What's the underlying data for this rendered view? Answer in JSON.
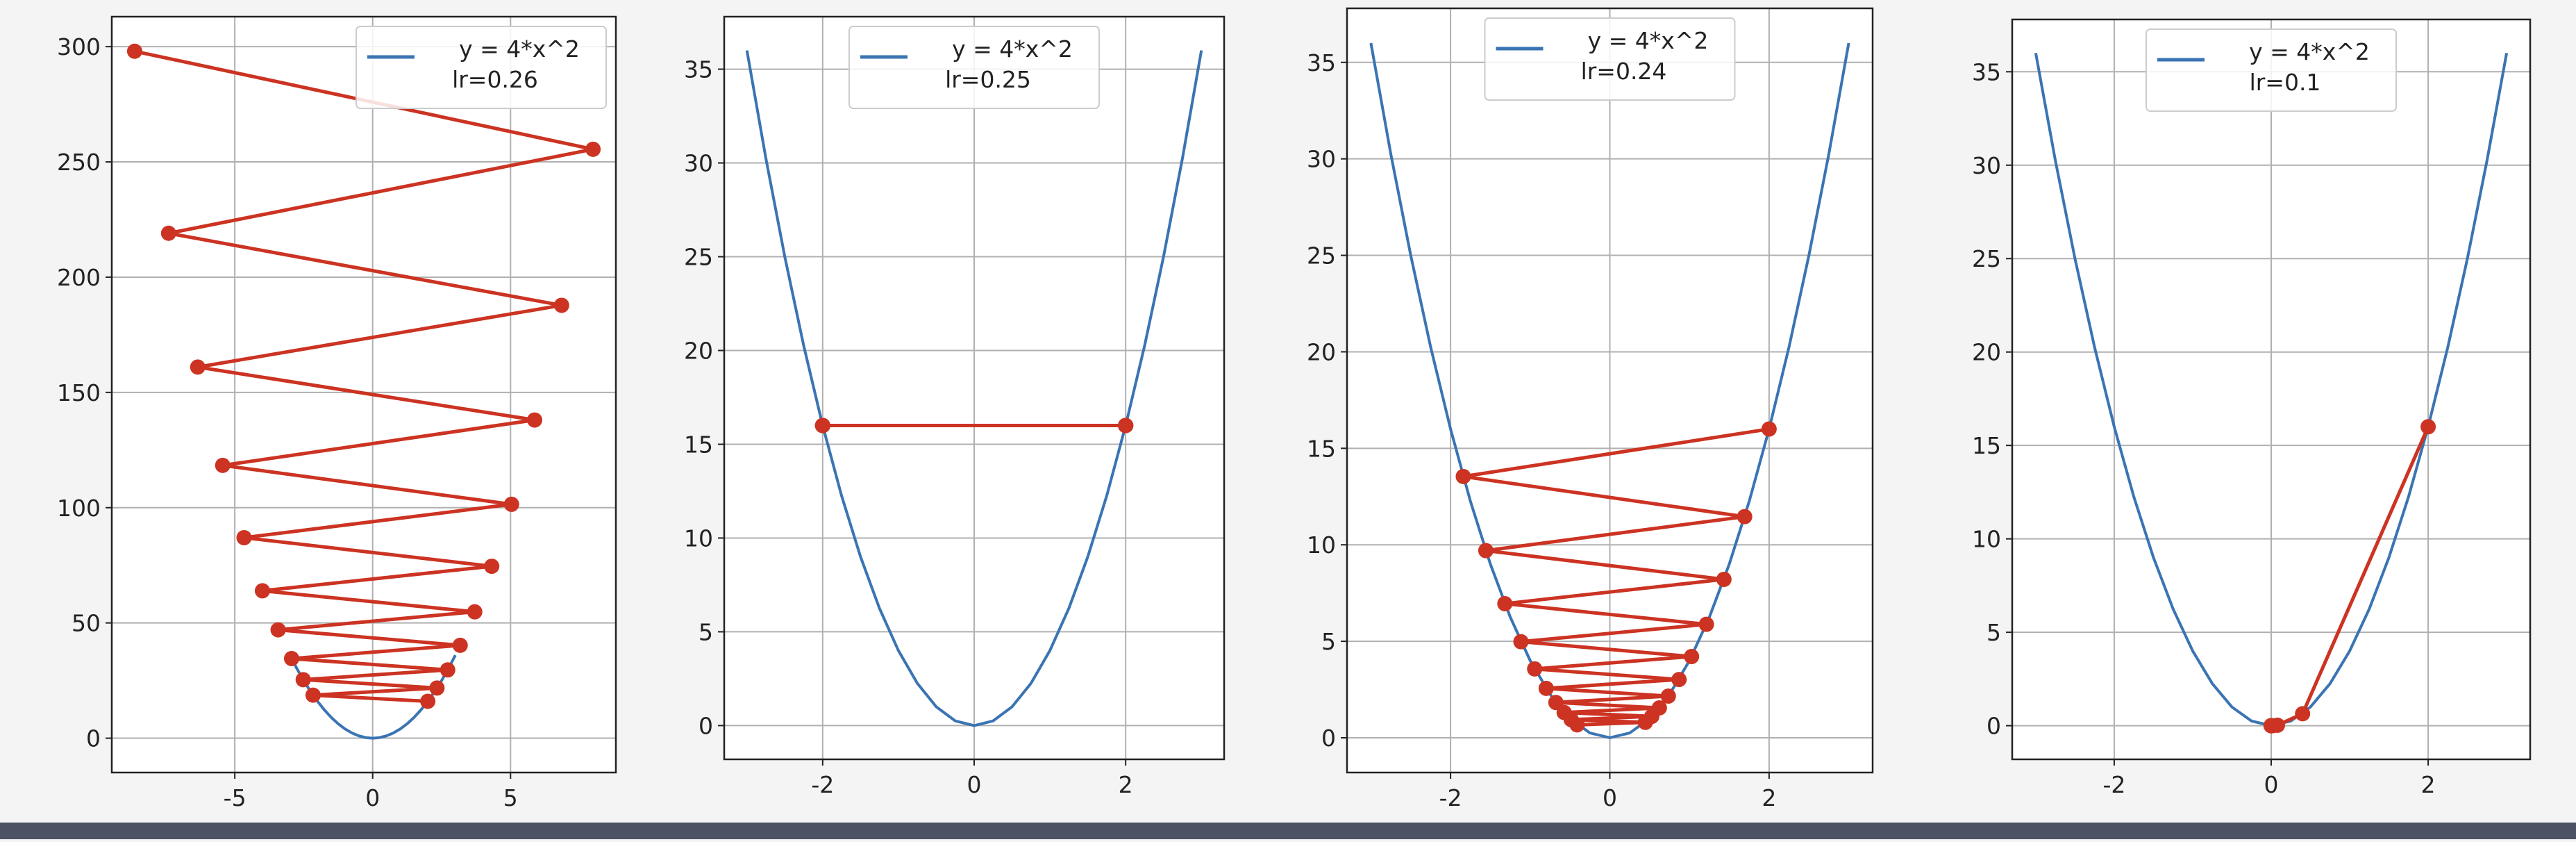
{
  "chart_data": [
    {
      "type": "line",
      "grid": true,
      "legend_loc": "upper right",
      "legend_note": "lr=0.26",
      "xlim": [
        -9.46,
        8.82
      ],
      "ylim": [
        -14.9,
        313
      ],
      "xticks": [
        -5,
        0,
        5
      ],
      "yticks": [
        0,
        50,
        100,
        150,
        200,
        250,
        300
      ],
      "series": [
        {
          "name": "y = 4*x^2",
          "color": "#3a74b3",
          "x": [
            -3,
            -2.75,
            -2.5,
            -2.25,
            -2,
            -1.75,
            -1.5,
            -1.25,
            -1,
            -0.75,
            -0.5,
            -0.25,
            0,
            0.25,
            0.5,
            0.75,
            1,
            1.25,
            1.5,
            1.75,
            2,
            2.25,
            2.5,
            2.75,
            3
          ],
          "values": [
            36,
            30.25,
            25,
            20.25,
            16,
            12.25,
            9,
            6.25,
            4,
            2.25,
            1,
            0.25,
            0,
            0.25,
            1,
            2.25,
            4,
            6.25,
            9,
            12.25,
            16,
            20.25,
            25,
            30.25,
            36
          ]
        },
        {
          "color": "#cc3322",
          "markers": true,
          "x": [
            2,
            -2.16,
            2.333,
            -2.519,
            2.721,
            -2.939,
            3.174,
            -3.428,
            3.702,
            -3.998,
            4.318,
            -4.663,
            5.036,
            -5.439,
            5.874,
            -6.344,
            6.852,
            -7.4,
            7.992,
            -8.631
          ],
          "values": [
            16,
            18.66,
            21.77,
            25.39,
            29.61,
            34.54,
            40.29,
            47.0,
            54.82,
            63.94,
            74.58,
            86.98,
            101.46,
            118.34,
            138.03,
            161.0,
            187.79,
            219.04,
            255.49,
            298.0
          ]
        }
      ]
    },
    {
      "type": "line",
      "grid": true,
      "legend_loc": "upper center",
      "legend_note": "lr=0.25",
      "xlim": [
        -3.3,
        3.3
      ],
      "ylim": [
        -1.8,
        37.8
      ],
      "xticks": [
        -2,
        0,
        2
      ],
      "yticks": [
        0,
        5,
        10,
        15,
        20,
        25,
        30,
        35
      ],
      "series": [
        {
          "name": "y = 4*x^2",
          "color": "#3a74b3",
          "x": [
            -3,
            -2.75,
            -2.5,
            -2.25,
            -2,
            -1.75,
            -1.5,
            -1.25,
            -1,
            -0.75,
            -0.5,
            -0.25,
            0,
            0.25,
            0.5,
            0.75,
            1,
            1.25,
            1.5,
            1.75,
            2,
            2.25,
            2.5,
            2.75,
            3
          ],
          "values": [
            36,
            30.25,
            25,
            20.25,
            16,
            12.25,
            9,
            6.25,
            4,
            2.25,
            1,
            0.25,
            0,
            0.25,
            1,
            2.25,
            4,
            6.25,
            9,
            12.25,
            16,
            20.25,
            25,
            30.25,
            36
          ]
        },
        {
          "color": "#cc3322",
          "markers": true,
          "x": [
            2,
            -2,
            2,
            -2,
            2,
            -2,
            2,
            -2,
            2,
            -2,
            2,
            -2,
            2,
            -2,
            2,
            -2,
            2,
            -2,
            2,
            -2
          ],
          "values": [
            16,
            16,
            16,
            16,
            16,
            16,
            16,
            16,
            16,
            16,
            16,
            16,
            16,
            16,
            16,
            16,
            16,
            16,
            16,
            16
          ]
        }
      ]
    },
    {
      "type": "line",
      "grid": true,
      "legend_loc": "upper center",
      "legend_note": "lr=0.24",
      "xlim": [
        -3.3,
        3.3
      ],
      "ylim": [
        -1.8,
        37.8
      ],
      "xticks": [
        -2,
        0,
        2
      ],
      "yticks": [
        0,
        5,
        10,
        15,
        20,
        25,
        30,
        35
      ],
      "series": [
        {
          "name": "y = 4*x^2",
          "color": "#3a74b3",
          "x": [
            -3,
            -2.75,
            -2.5,
            -2.25,
            -2,
            -1.75,
            -1.5,
            -1.25,
            -1,
            -0.75,
            -0.5,
            -0.25,
            0,
            0.25,
            0.5,
            0.75,
            1,
            1.25,
            1.5,
            1.75,
            2,
            2.25,
            2.5,
            2.75,
            3
          ],
          "values": [
            36,
            30.25,
            25,
            20.25,
            16,
            12.25,
            9,
            6.25,
            4,
            2.25,
            1,
            0.25,
            0,
            0.25,
            1,
            2.25,
            4,
            6.25,
            9,
            12.25,
            16,
            20.25,
            25,
            30.25,
            36
          ]
        },
        {
          "color": "#cc3322",
          "markers": true,
          "x": [
            2,
            -1.84,
            1.693,
            -1.557,
            1.433,
            -1.318,
            1.213,
            -1.116,
            1.026,
            -0.944,
            0.869,
            -0.799,
            0.735,
            -0.677,
            0.622,
            -0.573,
            0.527,
            -0.485,
            0.446,
            -0.41
          ],
          "values": [
            16,
            13.54,
            11.46,
            9.7,
            8.21,
            6.95,
            5.88,
            4.98,
            4.21,
            3.57,
            3.02,
            2.56,
            2.16,
            1.83,
            1.55,
            1.31,
            1.11,
            0.94,
            0.8,
            0.67
          ]
        }
      ]
    },
    {
      "type": "line",
      "grid": true,
      "legend_loc": "upper center",
      "legend_note": "lr=0.1",
      "xlim": [
        -3.3,
        3.3
      ],
      "ylim": [
        -1.8,
        37.8
      ],
      "xticks": [
        -2,
        0,
        2
      ],
      "yticks": [
        0,
        5,
        10,
        15,
        20,
        25,
        30,
        35
      ],
      "series": [
        {
          "name": "y = 4*x^2",
          "color": "#3a74b3",
          "x": [
            -3,
            -2.75,
            -2.5,
            -2.25,
            -2,
            -1.75,
            -1.5,
            -1.25,
            -1,
            -0.75,
            -0.5,
            -0.25,
            0,
            0.25,
            0.5,
            0.75,
            1,
            1.25,
            1.5,
            1.75,
            2,
            2.25,
            2.5,
            2.75,
            3
          ],
          "values": [
            36,
            30.25,
            25,
            20.25,
            16,
            12.25,
            9,
            6.25,
            4,
            2.25,
            1,
            0.25,
            0,
            0.25,
            1,
            2.25,
            4,
            6.25,
            9,
            12.25,
            16,
            20.25,
            25,
            30.25,
            36
          ]
        },
        {
          "color": "#cc3322",
          "markers": true,
          "x": [
            2,
            0.4,
            0.08,
            0.016,
            0.0032,
            0.00064,
            0.000128,
            2.56e-05,
            5.12e-06,
            1e-06
          ],
          "values": [
            16,
            0.64,
            0.0256,
            0.001024,
            4.096e-05,
            1.6e-06,
            7e-08,
            3e-09,
            0,
            0
          ]
        }
      ]
    }
  ]
}
